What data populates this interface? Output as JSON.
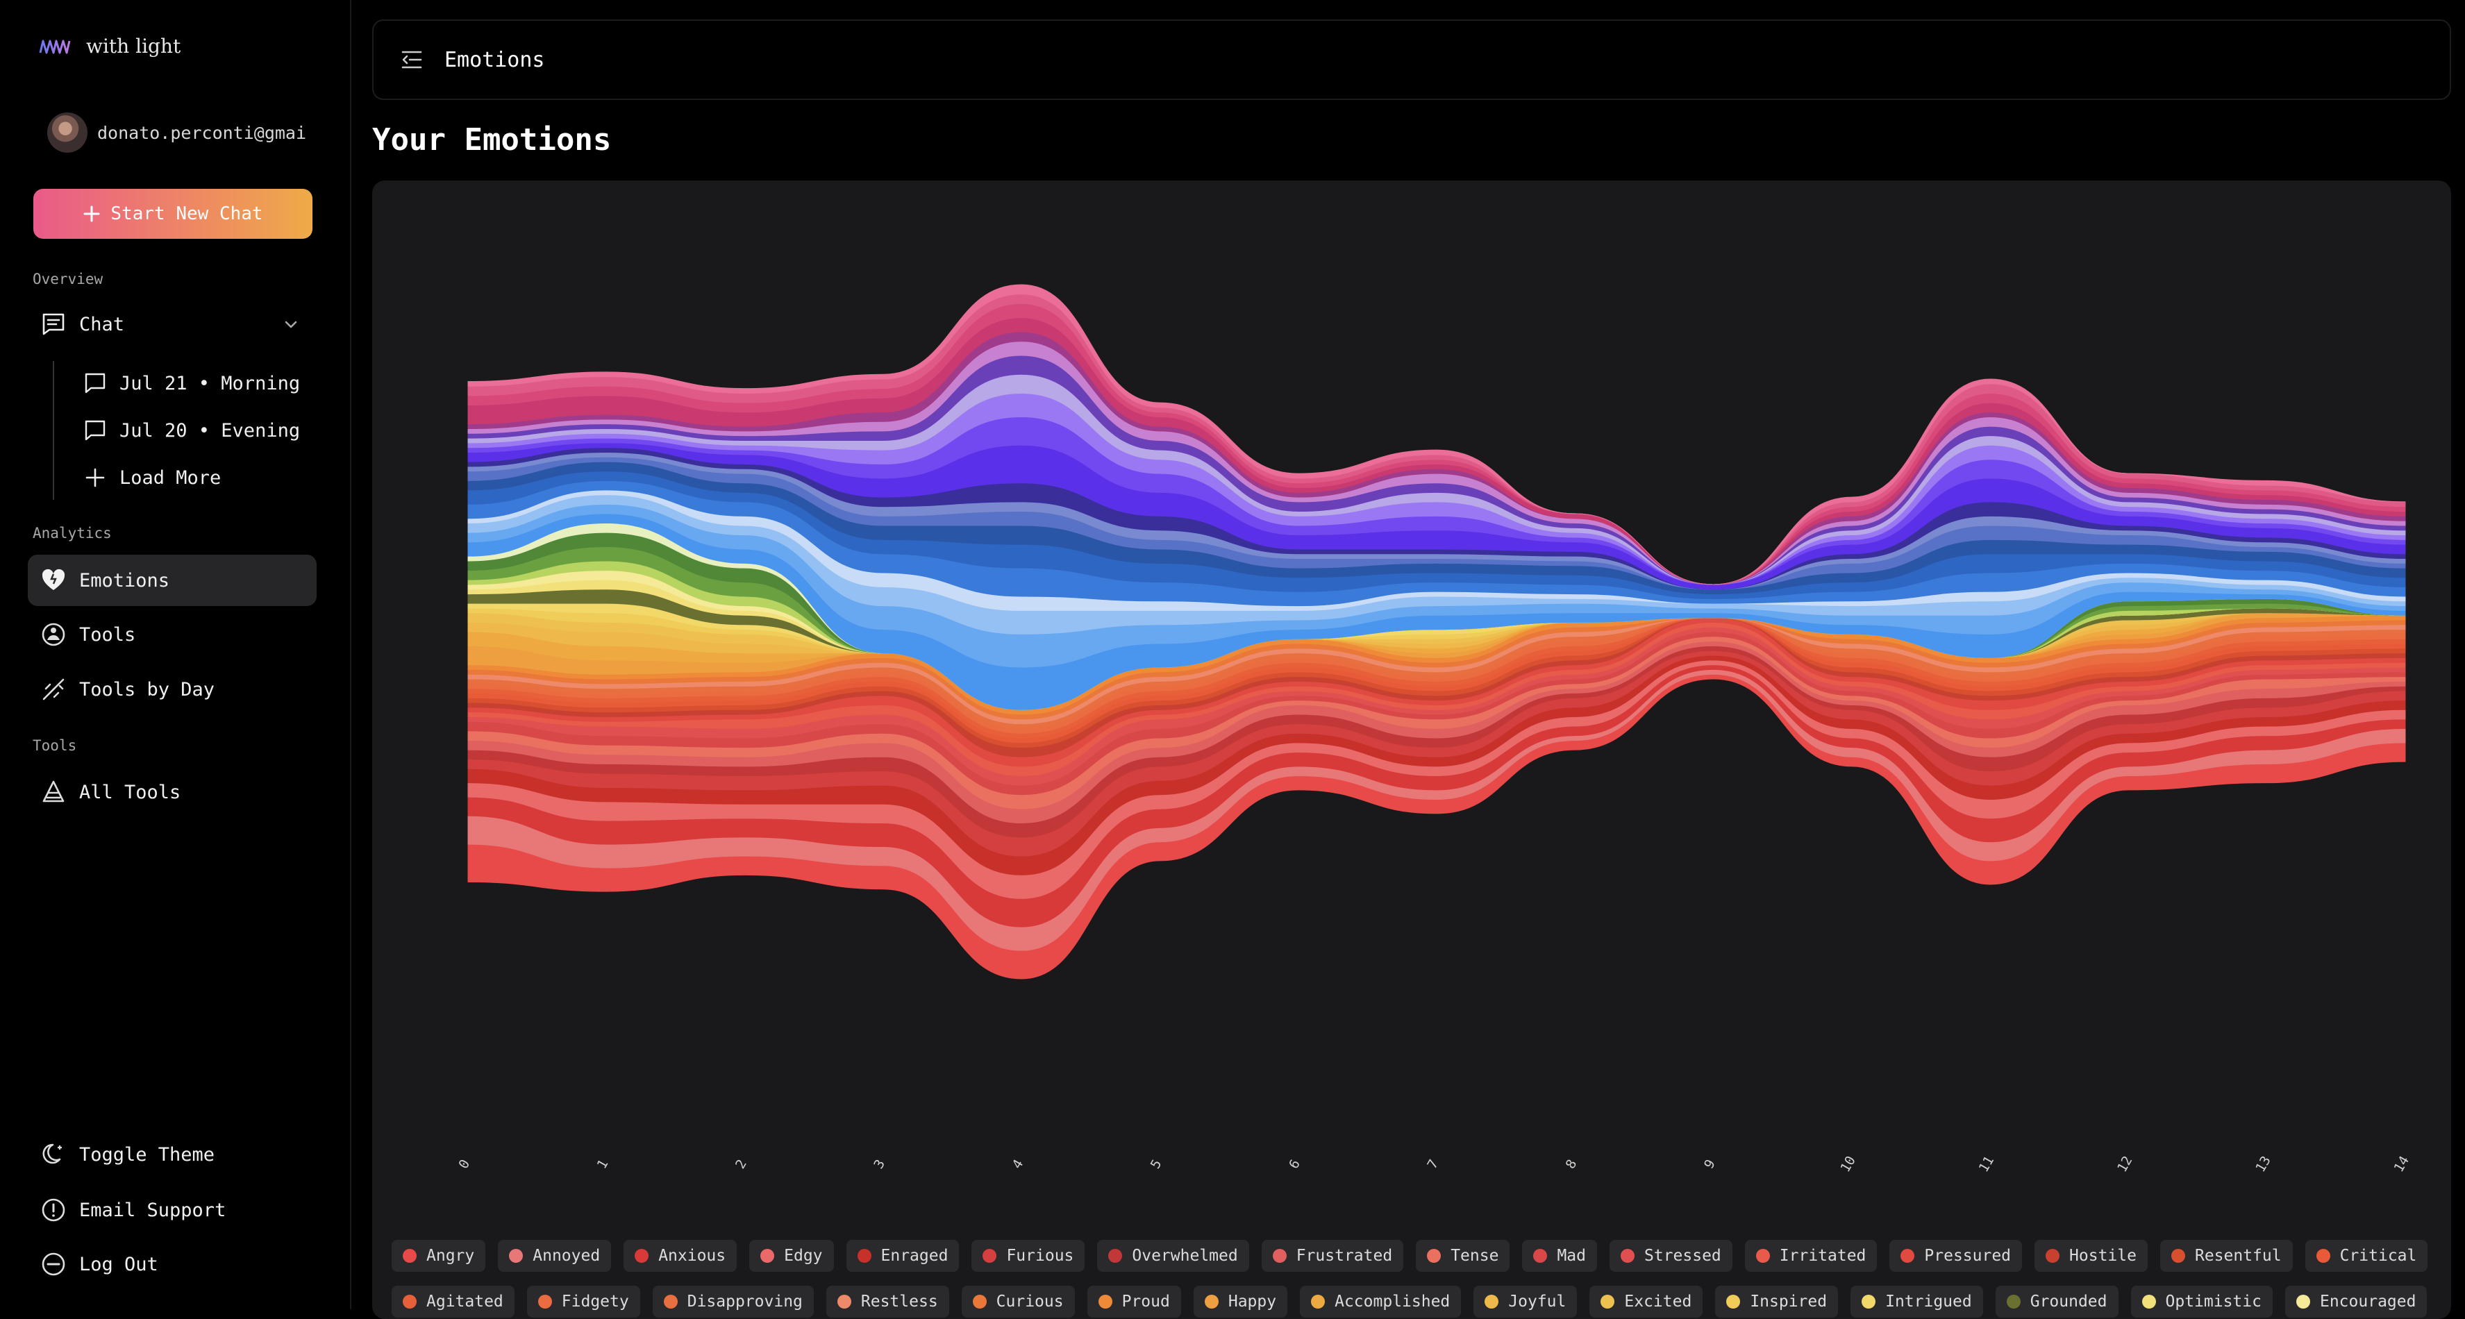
{
  "app": {
    "name": "with light"
  },
  "user": {
    "email": "donato.perconti@gmai"
  },
  "sidebar": {
    "new_chat_label": "Start New Chat",
    "overview_label": "Overview",
    "chat_label": "Chat",
    "chat_items": [
      {
        "label": "Jul 21 • Morning"
      },
      {
        "label": "Jul 20 • Evening"
      }
    ],
    "load_more_label": "Load More",
    "analytics_label": "Analytics",
    "analytics_items": [
      {
        "label": "Emotions",
        "icon": "heart-icon"
      },
      {
        "label": "Tools",
        "icon": "tools-icon"
      },
      {
        "label": "Tools by Day",
        "icon": "tools-by-day-icon"
      }
    ],
    "tools_label": "Tools",
    "all_tools_label": "All Tools",
    "footer_items": [
      {
        "label": "Toggle Theme",
        "icon": "moon-icon"
      },
      {
        "label": "Email Support",
        "icon": "alert-circle-icon"
      },
      {
        "label": "Log Out",
        "icon": "minus-circle-icon"
      }
    ]
  },
  "header": {
    "title": "Emotions"
  },
  "page": {
    "title": "Your Emotions"
  },
  "chart_data": {
    "type": "area",
    "subtype": "streamgraph",
    "x": [
      0,
      1,
      2,
      3,
      4,
      5,
      6,
      7,
      8,
      9,
      10,
      11,
      12,
      13,
      14
    ],
    "x_tick_labels": [
      "0",
      "1",
      "2",
      "3",
      "4",
      "5",
      "6",
      "7",
      "8",
      "9",
      "10",
      "11",
      "12",
      "13",
      "14"
    ],
    "grid": false,
    "legend_position": "bottom",
    "series": [
      {
        "name": "Angry",
        "color": "#e84a4a",
        "values": [
          8,
          5,
          4,
          5,
          6,
          4,
          3,
          3,
          2,
          1,
          2,
          5,
          3,
          4,
          4
        ]
      },
      {
        "name": "Annoyed",
        "color": "#e87878",
        "values": [
          6,
          5,
          4,
          4,
          5,
          3,
          2,
          2,
          1,
          1,
          2,
          4,
          2,
          3,
          3
        ]
      },
      {
        "name": "Anxious",
        "color": "#d83a3a",
        "values": [
          4,
          5,
          4,
          5,
          6,
          4,
          3,
          3,
          2,
          1,
          2,
          5,
          3,
          3,
          2
        ]
      },
      {
        "name": "Edgy",
        "color": "#ea6a6a",
        "values": [
          3,
          4,
          3,
          4,
          5,
          3,
          2,
          2,
          2,
          1,
          2,
          4,
          2,
          2,
          2
        ]
      },
      {
        "name": "Enraged",
        "color": "#c8302a",
        "values": [
          3,
          3,
          3,
          4,
          4,
          3,
          2,
          2,
          2,
          1,
          2,
          3,
          2,
          2,
          2
        ]
      },
      {
        "name": "Furious",
        "color": "#d44040",
        "values": [
          2,
          3,
          3,
          3,
          4,
          3,
          2,
          2,
          2,
          1,
          2,
          3,
          2,
          2,
          2
        ]
      },
      {
        "name": "Overwhelmed",
        "color": "#c23838",
        "values": [
          2,
          2,
          2,
          3,
          3,
          2,
          2,
          2,
          1,
          1,
          1,
          3,
          2,
          2,
          1
        ]
      },
      {
        "name": "Frustrated",
        "color": "#e06060",
        "values": [
          2,
          2,
          2,
          3,
          3,
          2,
          2,
          2,
          1,
          1,
          1,
          2,
          2,
          2,
          1
        ]
      },
      {
        "name": "Tense",
        "color": "#ea7060",
        "values": [
          2,
          2,
          2,
          2,
          3,
          2,
          1,
          2,
          1,
          1,
          1,
          2,
          1,
          2,
          1
        ]
      },
      {
        "name": "Mad",
        "color": "#d94848",
        "values": [
          2,
          2,
          2,
          2,
          2,
          2,
          1,
          1,
          1,
          1,
          1,
          2,
          1,
          1,
          1
        ]
      },
      {
        "name": "Stressed",
        "color": "#e05050",
        "values": [
          1,
          2,
          2,
          2,
          2,
          2,
          1,
          1,
          1,
          1,
          1,
          2,
          1,
          1,
          1
        ]
      },
      {
        "name": "Irritated",
        "color": "#e85a4a",
        "values": [
          1,
          1,
          2,
          2,
          2,
          1,
          1,
          1,
          1,
          1,
          1,
          2,
          1,
          1,
          1
        ]
      },
      {
        "name": "Pressured",
        "color": "#e04a40",
        "values": [
          1,
          1,
          1,
          2,
          2,
          1,
          1,
          1,
          1,
          1,
          1,
          2,
          1,
          1,
          1
        ]
      },
      {
        "name": "Hostile",
        "color": "#c84030",
        "values": [
          1,
          1,
          1,
          1,
          2,
          1,
          1,
          1,
          1,
          0,
          1,
          1,
          1,
          1,
          1
        ]
      },
      {
        "name": "Resentful",
        "color": "#d85030",
        "values": [
          1,
          1,
          1,
          1,
          1,
          1,
          1,
          1,
          1,
          0,
          1,
          1,
          1,
          1,
          1
        ]
      },
      {
        "name": "Critical",
        "color": "#e85a38",
        "values": [
          1,
          1,
          1,
          1,
          1,
          1,
          1,
          1,
          1,
          0,
          1,
          1,
          1,
          1,
          1
        ]
      },
      {
        "name": "Agitated",
        "color": "#e8603a",
        "values": [
          1,
          1,
          1,
          1,
          1,
          1,
          1,
          1,
          1,
          0,
          1,
          1,
          1,
          1,
          1
        ]
      },
      {
        "name": "Fidgety",
        "color": "#ea6c40",
        "values": [
          1,
          1,
          1,
          1,
          1,
          1,
          1,
          1,
          1,
          0,
          1,
          1,
          1,
          1,
          1
        ]
      },
      {
        "name": "Disapproving",
        "color": "#e87040",
        "values": [
          1,
          1,
          1,
          1,
          1,
          1,
          1,
          1,
          1,
          0,
          1,
          1,
          1,
          1,
          1
        ]
      },
      {
        "name": "Restless",
        "color": "#ee8a6a",
        "values": [
          1,
          1,
          1,
          1,
          1,
          1,
          1,
          1,
          1,
          0,
          1,
          1,
          1,
          1,
          1
        ]
      },
      {
        "name": "Curious",
        "color": "#ea7838",
        "values": [
          1,
          1,
          1,
          1,
          1,
          1,
          1,
          1,
          1,
          0,
          1,
          1,
          1,
          1,
          1
        ]
      },
      {
        "name": "Proud",
        "color": "#ee8a38",
        "values": [
          1,
          1,
          1,
          1,
          1,
          1,
          1,
          1,
          1,
          0,
          1,
          1,
          1,
          1,
          1
        ]
      },
      {
        "name": "Happy",
        "color": "#eea040",
        "values": [
          4,
          3,
          2,
          0,
          0,
          0,
          0,
          1,
          0,
          0,
          0,
          0,
          1,
          1,
          0
        ]
      },
      {
        "name": "Accomplished",
        "color": "#eeaa40",
        "values": [
          3,
          3,
          2,
          0,
          0,
          0,
          0,
          1,
          0,
          0,
          0,
          0,
          1,
          0,
          0
        ]
      },
      {
        "name": "Joyful",
        "color": "#eeb84a",
        "values": [
          2,
          3,
          2,
          0,
          0,
          0,
          0,
          1,
          0,
          0,
          0,
          0,
          1,
          0,
          0
        ]
      },
      {
        "name": "Excited",
        "color": "#eec050",
        "values": [
          2,
          2,
          2,
          0,
          0,
          0,
          0,
          1,
          0,
          0,
          0,
          0,
          1,
          0,
          0
        ]
      },
      {
        "name": "Inspired",
        "color": "#f0cc58",
        "values": [
          1,
          2,
          1,
          0,
          0,
          0,
          0,
          1,
          0,
          0,
          0,
          0,
          0,
          0,
          0
        ]
      },
      {
        "name": "Intrigued",
        "color": "#f2d868",
        "values": [
          1,
          2,
          1,
          0,
          0,
          0,
          0,
          1,
          0,
          0,
          0,
          0,
          0,
          0,
          0
        ]
      },
      {
        "name": "Grounded",
        "color": "#6a7030",
        "values": [
          2,
          3,
          2,
          0,
          0,
          0,
          0,
          0,
          0,
          0,
          0,
          0,
          1,
          1,
          0
        ]
      },
      {
        "name": "Optimistic",
        "color": "#f2e07a",
        "values": [
          1,
          2,
          1,
          0,
          0,
          0,
          0,
          0,
          0,
          0,
          0,
          0,
          0,
          0,
          0
        ]
      },
      {
        "name": "Encouraged",
        "color": "#f4ea98",
        "values": [
          1,
          2,
          1,
          0,
          0,
          0,
          0,
          0,
          0,
          0,
          0,
          0,
          0,
          0,
          0
        ]
      },
      {
        "name": "",
        "color": "#b8d460",
        "values": [
          1,
          2,
          2,
          0,
          0,
          0,
          0,
          0,
          0,
          0,
          0,
          0,
          1,
          0,
          0
        ]
      },
      {
        "name": "",
        "color": "#6aa040",
        "values": [
          2,
          3,
          3,
          0,
          0,
          0,
          0,
          0,
          0,
          0,
          0,
          0,
          1,
          1,
          0
        ]
      },
      {
        "name": "",
        "color": "#508838",
        "values": [
          2,
          3,
          3,
          0,
          0,
          0,
          0,
          0,
          0,
          0,
          0,
          0,
          1,
          1,
          0
        ]
      },
      {
        "name": "",
        "color": "#e8f0c0",
        "values": [
          1,
          2,
          1,
          0,
          0,
          0,
          0,
          0,
          0,
          0,
          0,
          0,
          0,
          0,
          0
        ]
      },
      {
        "name": "",
        "color": "#4a96ee",
        "values": [
          3,
          2,
          3,
          5,
          9,
          5,
          2,
          3,
          2,
          1,
          2,
          5,
          2,
          1,
          1
        ]
      },
      {
        "name": "",
        "color": "#68a8f0",
        "values": [
          2,
          2,
          3,
          5,
          7,
          4,
          2,
          2,
          2,
          1,
          2,
          4,
          2,
          1,
          1
        ]
      },
      {
        "name": "",
        "color": "#94c0f4",
        "values": [
          2,
          2,
          2,
          4,
          5,
          3,
          2,
          2,
          1,
          1,
          2,
          3,
          1,
          1,
          1
        ]
      },
      {
        "name": "",
        "color": "#c8dcf8",
        "values": [
          1,
          1,
          2,
          3,
          3,
          2,
          1,
          1,
          1,
          0,
          1,
          2,
          1,
          1,
          1
        ]
      },
      {
        "name": "",
        "color": "#3a7ad8",
        "values": [
          3,
          2,
          3,
          4,
          6,
          4,
          3,
          2,
          2,
          1,
          2,
          4,
          2,
          2,
          2
        ]
      },
      {
        "name": "",
        "color": "#2e66c4",
        "values": [
          3,
          2,
          2,
          3,
          5,
          4,
          3,
          2,
          2,
          1,
          2,
          4,
          2,
          2,
          2
        ]
      },
      {
        "name": "",
        "color": "#2a56a8",
        "values": [
          2,
          2,
          2,
          3,
          4,
          3,
          2,
          2,
          2,
          1,
          2,
          3,
          2,
          2,
          2
        ]
      },
      {
        "name": "",
        "color": "#5872c8",
        "values": [
          2,
          1,
          2,
          2,
          3,
          2,
          2,
          1,
          1,
          0,
          2,
          3,
          2,
          1,
          1
        ]
      },
      {
        "name": "",
        "color": "#7a8ad0",
        "values": [
          1,
          1,
          1,
          2,
          2,
          2,
          1,
          1,
          1,
          0,
          1,
          2,
          1,
          1,
          1
        ]
      },
      {
        "name": "",
        "color": "#3a2e9a",
        "values": [
          1,
          1,
          1,
          2,
          4,
          3,
          1,
          1,
          1,
          0,
          1,
          3,
          1,
          1,
          1
        ]
      },
      {
        "name": "",
        "color": "#5a30e8",
        "values": [
          2,
          1,
          2,
          4,
          8,
          5,
          3,
          4,
          2,
          1,
          2,
          5,
          2,
          2,
          2
        ]
      },
      {
        "name": "",
        "color": "#7248f0",
        "values": [
          1,
          1,
          1,
          3,
          6,
          4,
          2,
          3,
          1,
          0,
          1,
          4,
          1,
          1,
          1
        ]
      },
      {
        "name": "",
        "color": "#9a78f4",
        "values": [
          1,
          1,
          1,
          3,
          5,
          3,
          2,
          3,
          1,
          0,
          1,
          3,
          1,
          1,
          1
        ]
      },
      {
        "name": "",
        "color": "#b8a8e8",
        "values": [
          1,
          1,
          1,
          2,
          4,
          2,
          1,
          2,
          1,
          0,
          1,
          2,
          1,
          1,
          1
        ]
      },
      {
        "name": "",
        "color": "#6a40b8",
        "values": [
          1,
          1,
          1,
          2,
          4,
          2,
          2,
          2,
          1,
          0,
          1,
          2,
          1,
          1,
          1
        ]
      },
      {
        "name": "",
        "color": "#c880d0",
        "values": [
          1,
          1,
          1,
          2,
          3,
          2,
          1,
          2,
          1,
          0,
          1,
          2,
          1,
          1,
          1
        ]
      },
      {
        "name": "",
        "color": "#a03a8a",
        "values": [
          1,
          1,
          1,
          2,
          2,
          1,
          1,
          1,
          0,
          0,
          1,
          1,
          1,
          1,
          1
        ]
      },
      {
        "name": "",
        "color": "#c83a70",
        "values": [
          4,
          4,
          3,
          3,
          3,
          2,
          1,
          1,
          1,
          0,
          1,
          2,
          1,
          1,
          1
        ]
      },
      {
        "name": "",
        "color": "#d84878",
        "values": [
          2,
          2,
          2,
          2,
          3,
          1,
          1,
          1,
          0,
          0,
          1,
          2,
          1,
          1,
          1
        ]
      },
      {
        "name": "",
        "color": "#e05a88",
        "values": [
          2,
          2,
          2,
          2,
          2,
          1,
          1,
          1,
          0,
          0,
          1,
          2,
          1,
          1,
          1
        ]
      },
      {
        "name": "",
        "color": "#ea6e98",
        "values": [
          1,
          1,
          1,
          1,
          2,
          1,
          1,
          1,
          0,
          0,
          1,
          1,
          0,
          1,
          0
        ]
      }
    ]
  }
}
